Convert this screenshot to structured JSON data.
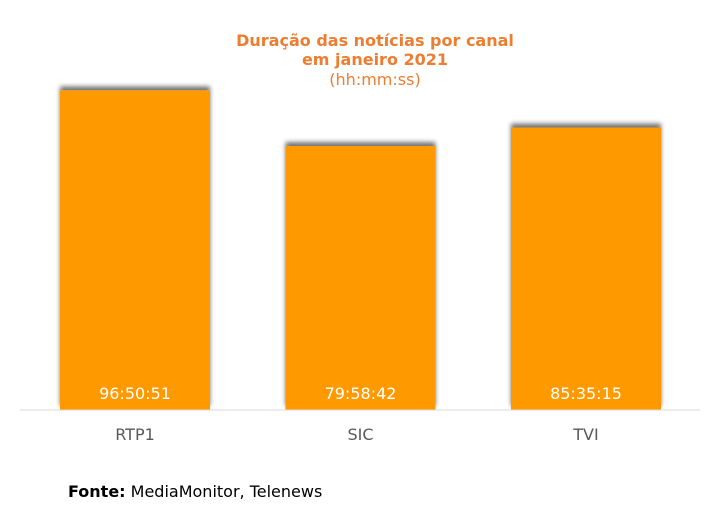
{
  "chart_data": {
    "type": "bar",
    "title_line1": "Duração das notícias por canal",
    "title_line2": "em janeiro 2021",
    "subtitle": "(hh:mm:ss)",
    "categories": [
      "RTP1",
      "SIC",
      "TVI"
    ],
    "values": [
      96.8475,
      79.9783,
      85.5875
    ],
    "data_labels": [
      "96:50:51",
      "79:58:42",
      "85:35:15"
    ],
    "ylim": [
      0,
      100
    ],
    "bar_color": "#ff9900",
    "title_color": "#ed7d31",
    "grid": false,
    "legend": "none"
  },
  "source": {
    "label": "Fonte:",
    "text": " MediaMonitor, Telenews"
  }
}
